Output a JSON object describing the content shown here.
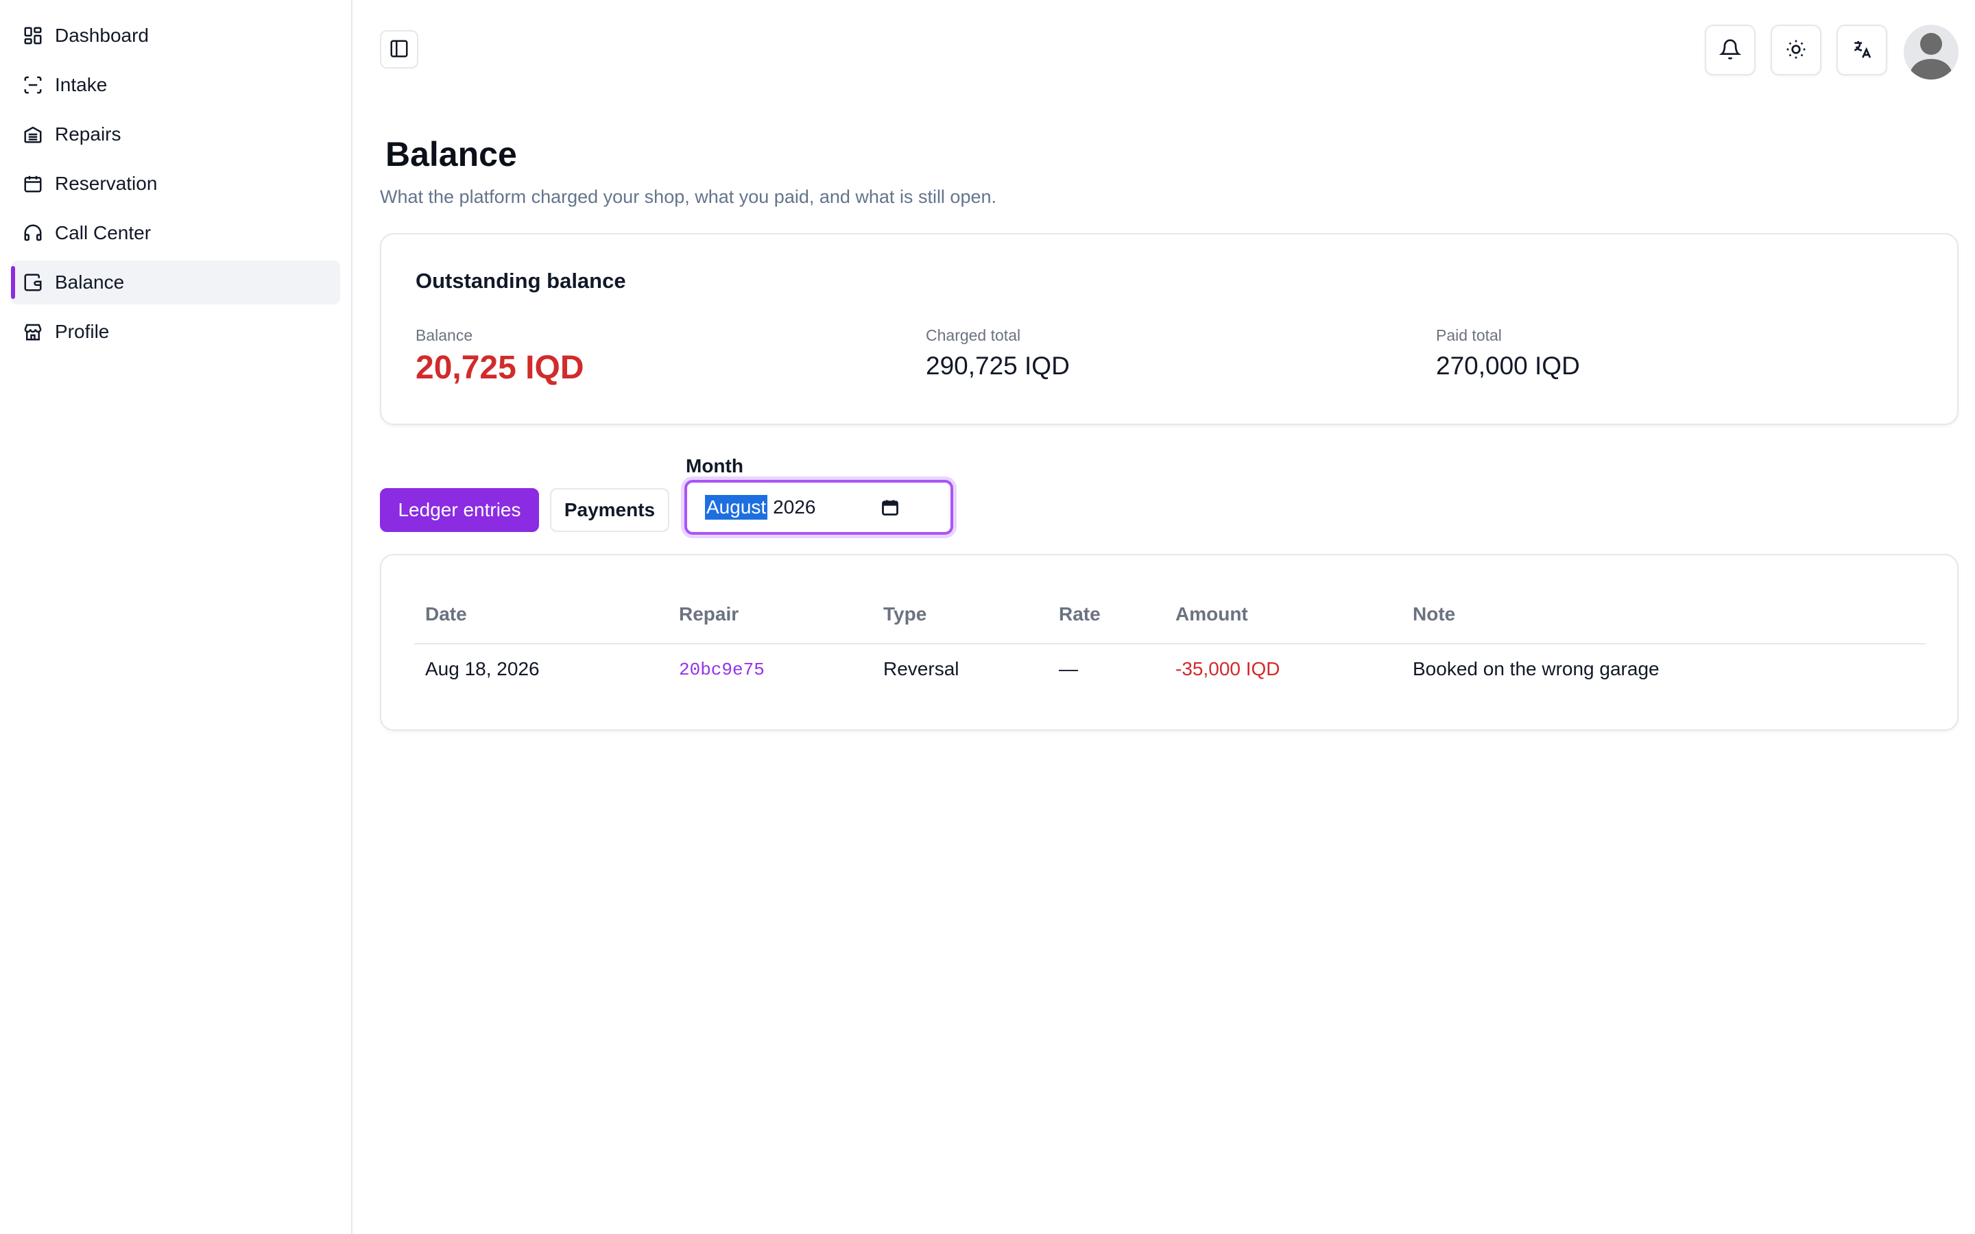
{
  "sidebar": {
    "items": [
      {
        "label": "Dashboard",
        "icon": "dashboard-grid-icon"
      },
      {
        "label": "Intake",
        "icon": "scan-icon"
      },
      {
        "label": "Repairs",
        "icon": "garage-icon"
      },
      {
        "label": "Reservation",
        "icon": "calendar-icon"
      },
      {
        "label": "Call Center",
        "icon": "headset-icon"
      },
      {
        "label": "Balance",
        "icon": "wallet-icon",
        "active": true
      },
      {
        "label": "Profile",
        "icon": "store-icon"
      }
    ]
  },
  "header": {
    "icons": [
      "sidebar-toggle-icon",
      "bell-icon",
      "sun-icon",
      "translate-icon",
      "avatar"
    ]
  },
  "page": {
    "title": "Balance",
    "subtitle": "What the platform charged your shop, what you paid, and what is still open."
  },
  "summary": {
    "title": "Outstanding balance",
    "balance_label": "Balance",
    "balance_value": "20,725 IQD",
    "charged_label": "Charged total",
    "charged_value": "290,725 IQD",
    "paid_label": "Paid total",
    "paid_value": "270,000 IQD"
  },
  "tabs": {
    "ledger_label": "Ledger entries",
    "payments_label": "Payments"
  },
  "month_filter": {
    "label": "Month",
    "month": "August",
    "year": "2026"
  },
  "table": {
    "columns": [
      "Date",
      "Repair",
      "Type",
      "Rate",
      "Amount",
      "Note"
    ],
    "rows": [
      [
        "Aug 18, 2026",
        "20bc9e75",
        "Reversal",
        "—",
        "-35,000 IQD",
        "Booked on the wrong garage"
      ]
    ]
  },
  "colors": {
    "accent": "#8b2be2",
    "negative": "#d12b2b",
    "muted": "#6b7280"
  }
}
